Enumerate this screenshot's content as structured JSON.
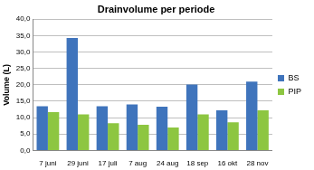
{
  "chart_data": {
    "type": "bar",
    "title": "Drainvolume per periode",
    "y_label": "Volume (L)",
    "categories": [
      "7 juni",
      "29 juni",
      "17 juli",
      "7 aug",
      "24 aug",
      "18 sep",
      "16 okt",
      "28 nov"
    ],
    "series": [
      {
        "name": "BS",
        "color": "#3f74bc",
        "values": [
          13.5,
          34.3,
          13.5,
          14.0,
          13.3,
          20.1,
          12.2,
          21.0
        ]
      },
      {
        "name": "PIP",
        "color": "#8dc641",
        "values": [
          11.7,
          11.0,
          8.3,
          7.8,
          7.0,
          11.0,
          8.6,
          12.2
        ]
      }
    ],
    "ylim": [
      0,
      40
    ],
    "yticks": [
      {
        "value": 0,
        "label": "0,0"
      },
      {
        "value": 5,
        "label": "5,0"
      },
      {
        "value": 10,
        "label": "10,0"
      },
      {
        "value": 15,
        "label": "15,0"
      },
      {
        "value": 20,
        "label": "20,0"
      },
      {
        "value": 25,
        "label": "25,0"
      },
      {
        "value": 30,
        "label": "30,0"
      },
      {
        "value": 35,
        "label": "35,0"
      },
      {
        "value": 40,
        "label": "40,0"
      }
    ],
    "grid": true,
    "legend": "right"
  }
}
